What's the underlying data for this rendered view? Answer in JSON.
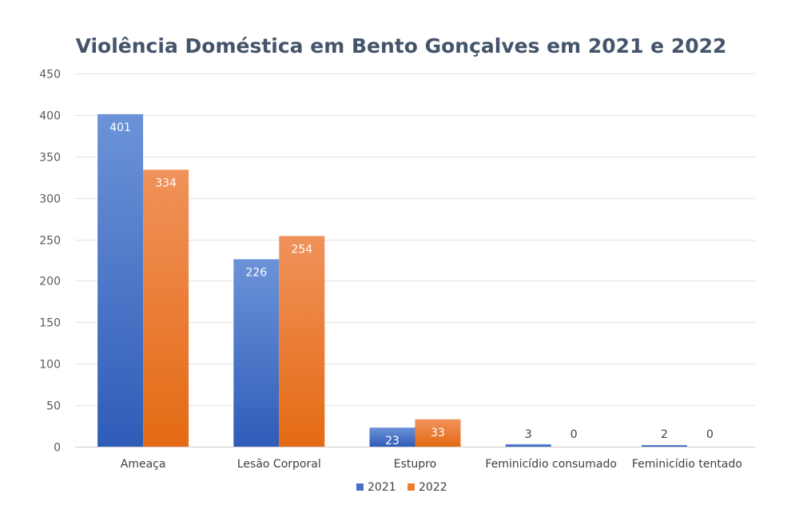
{
  "chart_data": {
    "type": "bar",
    "title": "Violência Doméstica em Bento Gonçalves em 2021 e 2022",
    "categories": [
      "Ameaça",
      "Lesão Corporal",
      "Estupro",
      "Feminicídio consumado",
      "Feminicídio tentado"
    ],
    "series": [
      {
        "name": "2021",
        "values": [
          401,
          226,
          23,
          3,
          2
        ],
        "color": "#4472c4"
      },
      {
        "name": "2022",
        "values": [
          334,
          254,
          33,
          0,
          0
        ],
        "color": "#ed7d31"
      }
    ],
    "ylim": [
      0,
      450
    ],
    "yticks": [
      0,
      50,
      100,
      150,
      200,
      250,
      300,
      350,
      400,
      450
    ],
    "ytick_labels": [
      "0",
      "50",
      "100",
      "150",
      "200",
      "250",
      "300",
      "350",
      "400",
      "450"
    ],
    "grid": true,
    "legend_position": "bottom",
    "data_labels": true
  }
}
